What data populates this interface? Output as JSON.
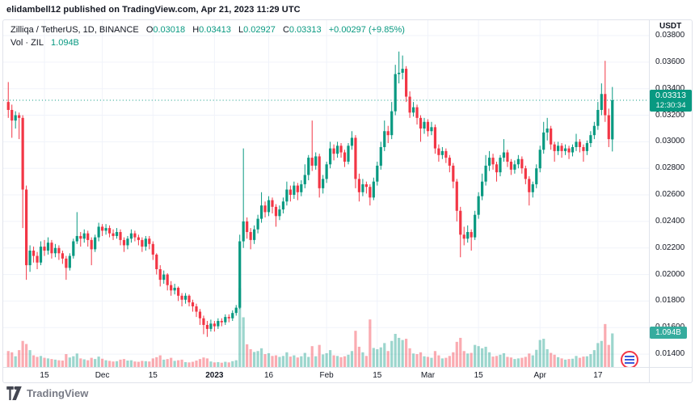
{
  "attribution": "elidambell12 published on TradingView.com, Apr 21, 2023 11:29 UTC",
  "legend": {
    "symbol": "Zilliqa / TetherUS, 1D, BINANCE",
    "o_key": "O",
    "o": "0.03018",
    "h_key": "H",
    "h": "0.03413",
    "l_key": "L",
    "l": "0.02927",
    "c_key": "C",
    "c": "0.03313",
    "change": "+0.00297 (+9.85%)",
    "vol_label": "Vol · ZIL",
    "vol_value": "1.094B"
  },
  "price_scale": {
    "currency": "USDT",
    "last_price": "0.03313",
    "countdown": "12:30:34",
    "volume_badge": "1.094B"
  },
  "footer": {
    "logo_text": "TradingView"
  },
  "colors": {
    "up": "#089981",
    "down": "#f23645",
    "vol_up": "rgba(8,153,129,0.40)",
    "vol_down": "rgba(242,54,69,0.42)",
    "grid": "#f0f3fa",
    "price_line": "#089981"
  },
  "chart_data": {
    "type": "candlestick+volume",
    "title": "Zilliqa / TetherUS daily chart",
    "symbol": "ZIL/USDT",
    "exchange": "BINANCE",
    "interval": "1D",
    "start_date": "2022-11-05",
    "end_date": "2023-04-21",
    "ylim": [
      0.01303,
      0.03916
    ],
    "vol_max_b": 11.3,
    "price_line": 0.03313,
    "last_volume_b": 1.094,
    "y_ticks": [
      "0.03800",
      "0.03600",
      "0.03400",
      "0.03200",
      "0.03000",
      "0.02800",
      "0.02600",
      "0.02400",
      "0.02200",
      "0.02000",
      "0.01800",
      "0.01600",
      "0.01400"
    ],
    "x_ticks": [
      {
        "i": 10,
        "label": "15"
      },
      {
        "i": 26,
        "label": "Dec"
      },
      {
        "i": 40,
        "label": "15"
      },
      {
        "i": 57,
        "label": "2023",
        "bold": true
      },
      {
        "i": 72,
        "label": "16"
      },
      {
        "i": 88,
        "label": "Feb"
      },
      {
        "i": 102,
        "label": "15"
      },
      {
        "i": 116,
        "label": "Mar"
      },
      {
        "i": 130,
        "label": "15"
      },
      {
        "i": 147,
        "label": "Apr"
      },
      {
        "i": 163,
        "label": "17"
      }
    ],
    "candles_format": [
      "open",
      "high",
      "low",
      "close",
      "volume_billions"
    ],
    "candles": [
      [
        0.033,
        0.0345,
        0.0318,
        0.0324,
        0.52
      ],
      [
        0.0324,
        0.0328,
        0.0303,
        0.0316,
        0.48
      ],
      [
        0.0316,
        0.0323,
        0.031,
        0.032,
        0.35
      ],
      [
        0.032,
        0.0322,
        0.0302,
        0.0318,
        0.55
      ],
      [
        0.0318,
        0.032,
        0.0235,
        0.0264,
        0.85
      ],
      [
        0.0264,
        0.0267,
        0.0196,
        0.0207,
        0.75
      ],
      [
        0.0207,
        0.0222,
        0.0202,
        0.0218,
        0.55
      ],
      [
        0.0218,
        0.0221,
        0.0209,
        0.0214,
        0.38
      ],
      [
        0.0214,
        0.0217,
        0.0204,
        0.0209,
        0.33
      ],
      [
        0.0209,
        0.0225,
        0.0207,
        0.0221,
        0.36
      ],
      [
        0.0221,
        0.0226,
        0.0214,
        0.0218,
        0.3
      ],
      [
        0.0218,
        0.0228,
        0.0215,
        0.0224,
        0.28
      ],
      [
        0.0224,
        0.0226,
        0.0212,
        0.0216,
        0.26
      ],
      [
        0.0216,
        0.0223,
        0.0213,
        0.022,
        0.24
      ],
      [
        0.022,
        0.0222,
        0.0211,
        0.0216,
        0.22
      ],
      [
        0.0216,
        0.0218,
        0.0208,
        0.0212,
        0.21
      ],
      [
        0.0212,
        0.0214,
        0.0196,
        0.0205,
        0.42
      ],
      [
        0.0205,
        0.0216,
        0.0203,
        0.0214,
        0.31
      ],
      [
        0.0214,
        0.0227,
        0.0212,
        0.0225,
        0.35
      ],
      [
        0.0225,
        0.0247,
        0.0223,
        0.0229,
        0.44
      ],
      [
        0.0229,
        0.0232,
        0.0221,
        0.0227,
        0.28
      ],
      [
        0.0227,
        0.0234,
        0.0224,
        0.0231,
        0.25
      ],
      [
        0.0231,
        0.0233,
        0.0221,
        0.0226,
        0.22
      ],
      [
        0.0226,
        0.0228,
        0.0207,
        0.0219,
        0.3
      ],
      [
        0.0219,
        0.023,
        0.0217,
        0.0228,
        0.26
      ],
      [
        0.0228,
        0.0239,
        0.0225,
        0.0236,
        0.34
      ],
      [
        0.0236,
        0.0238,
        0.0229,
        0.0233,
        0.27
      ],
      [
        0.0233,
        0.0238,
        0.023,
        0.0235,
        0.22
      ],
      [
        0.0235,
        0.0237,
        0.0228,
        0.0231,
        0.2
      ],
      [
        0.0231,
        0.0234,
        0.0226,
        0.0229,
        0.18
      ],
      [
        0.0229,
        0.0235,
        0.0227,
        0.0232,
        0.19
      ],
      [
        0.0232,
        0.0234,
        0.0222,
        0.0226,
        0.24
      ],
      [
        0.0226,
        0.0228,
        0.0217,
        0.0222,
        0.26
      ],
      [
        0.0222,
        0.0229,
        0.0219,
        0.0227,
        0.21
      ],
      [
        0.0227,
        0.0234,
        0.0224,
        0.0231,
        0.22
      ],
      [
        0.0231,
        0.0233,
        0.0225,
        0.0228,
        0.18
      ],
      [
        0.0228,
        0.023,
        0.0222,
        0.0226,
        0.17
      ],
      [
        0.0226,
        0.0228,
        0.0217,
        0.0221,
        0.2
      ],
      [
        0.0221,
        0.0229,
        0.0218,
        0.0227,
        0.19
      ],
      [
        0.0227,
        0.0229,
        0.0219,
        0.0223,
        0.18
      ],
      [
        0.0223,
        0.0225,
        0.0211,
        0.0215,
        0.28
      ],
      [
        0.0215,
        0.0216,
        0.02,
        0.0204,
        0.32
      ],
      [
        0.0204,
        0.0207,
        0.0191,
        0.0196,
        0.38
      ],
      [
        0.0196,
        0.0203,
        0.0193,
        0.02,
        0.24
      ],
      [
        0.02,
        0.0201,
        0.0188,
        0.0192,
        0.26
      ],
      [
        0.0192,
        0.0195,
        0.0184,
        0.0188,
        0.3
      ],
      [
        0.0188,
        0.0193,
        0.0185,
        0.019,
        0.2
      ],
      [
        0.019,
        0.0191,
        0.018,
        0.0184,
        0.22
      ],
      [
        0.0184,
        0.0186,
        0.0176,
        0.0181,
        0.24
      ],
      [
        0.0181,
        0.0186,
        0.0178,
        0.0184,
        0.16
      ],
      [
        0.0184,
        0.0185,
        0.0176,
        0.0179,
        0.15
      ],
      [
        0.0179,
        0.0181,
        0.0172,
        0.0176,
        0.17
      ],
      [
        0.0176,
        0.0178,
        0.0168,
        0.0172,
        0.21
      ],
      [
        0.0172,
        0.0174,
        0.0162,
        0.0167,
        0.26
      ],
      [
        0.0167,
        0.0169,
        0.0155,
        0.0162,
        0.31
      ],
      [
        0.0162,
        0.0165,
        0.0153,
        0.0159,
        0.28
      ],
      [
        0.0159,
        0.0166,
        0.0157,
        0.0163,
        0.18
      ],
      [
        0.0163,
        0.0165,
        0.0157,
        0.0161,
        0.15
      ],
      [
        0.0161,
        0.0167,
        0.0159,
        0.0165,
        0.16
      ],
      [
        0.0165,
        0.0167,
        0.0161,
        0.0164,
        0.14
      ],
      [
        0.0164,
        0.017,
        0.0162,
        0.0168,
        0.17
      ],
      [
        0.0168,
        0.017,
        0.0164,
        0.0167,
        0.15
      ],
      [
        0.0167,
        0.0173,
        0.0165,
        0.0171,
        0.19
      ],
      [
        0.0171,
        0.0177,
        0.0169,
        0.0175,
        0.22
      ],
      [
        0.0175,
        0.023,
        0.0174,
        0.0225,
        2.57
      ],
      [
        0.0225,
        0.0295,
        0.022,
        0.024,
        1.62
      ],
      [
        0.024,
        0.0243,
        0.0227,
        0.0232,
        0.74
      ],
      [
        0.0232,
        0.0235,
        0.0219,
        0.0226,
        0.58
      ],
      [
        0.0226,
        0.0237,
        0.0223,
        0.0234,
        0.49
      ],
      [
        0.0234,
        0.0245,
        0.0231,
        0.0242,
        0.52
      ],
      [
        0.0242,
        0.0262,
        0.0239,
        0.0252,
        0.61
      ],
      [
        0.0252,
        0.0255,
        0.0243,
        0.0247,
        0.42
      ],
      [
        0.0247,
        0.0259,
        0.0244,
        0.0256,
        0.45
      ],
      [
        0.0256,
        0.0258,
        0.0246,
        0.0251,
        0.36
      ],
      [
        0.0251,
        0.0253,
        0.0236,
        0.0244,
        0.38
      ],
      [
        0.0244,
        0.0252,
        0.0241,
        0.0249,
        0.33
      ],
      [
        0.0249,
        0.0258,
        0.0246,
        0.0255,
        0.36
      ],
      [
        0.0255,
        0.027,
        0.0252,
        0.0264,
        0.48
      ],
      [
        0.0264,
        0.0267,
        0.0255,
        0.026,
        0.34
      ],
      [
        0.026,
        0.027,
        0.0257,
        0.0267,
        0.38
      ],
      [
        0.0267,
        0.0269,
        0.0256,
        0.0262,
        0.31
      ],
      [
        0.0262,
        0.0271,
        0.0259,
        0.0268,
        0.35
      ],
      [
        0.0268,
        0.0283,
        0.0265,
        0.0275,
        0.46
      ],
      [
        0.0275,
        0.029,
        0.0271,
        0.0288,
        0.33
      ],
      [
        0.0288,
        0.0316,
        0.0278,
        0.0282,
        0.68
      ],
      [
        0.0282,
        0.0292,
        0.0279,
        0.0289,
        0.35
      ],
      [
        0.0289,
        0.0291,
        0.0258,
        0.0265,
        0.72
      ],
      [
        0.0265,
        0.0275,
        0.0261,
        0.0272,
        0.41
      ],
      [
        0.0272,
        0.0285,
        0.0269,
        0.0283,
        0.45
      ],
      [
        0.0283,
        0.03,
        0.028,
        0.0295,
        0.55
      ],
      [
        0.0295,
        0.0298,
        0.0286,
        0.0291,
        0.38
      ],
      [
        0.0291,
        0.03,
        0.0288,
        0.0297,
        0.36
      ],
      [
        0.0297,
        0.0299,
        0.0288,
        0.0292,
        0.32
      ],
      [
        0.0292,
        0.0294,
        0.0281,
        0.0285,
        0.35
      ],
      [
        0.0285,
        0.0299,
        0.0283,
        0.0297,
        0.4
      ],
      [
        0.0297,
        0.0308,
        0.0294,
        0.0303,
        0.52
      ],
      [
        0.0303,
        0.0305,
        0.0265,
        0.0272,
        1.18
      ],
      [
        0.0272,
        0.0276,
        0.0255,
        0.0262,
        0.66
      ],
      [
        0.0262,
        0.0272,
        0.0259,
        0.0268,
        0.48
      ],
      [
        0.0268,
        0.027,
        0.0261,
        0.0266,
        0.36
      ],
      [
        0.0266,
        0.0268,
        0.0252,
        0.0258,
        1.55
      ],
      [
        0.0258,
        0.0273,
        0.0256,
        0.027,
        0.62
      ],
      [
        0.027,
        0.0285,
        0.0267,
        0.0282,
        0.58
      ],
      [
        0.0282,
        0.03,
        0.0279,
        0.0296,
        0.64
      ],
      [
        0.0296,
        0.0316,
        0.0293,
        0.0308,
        0.78
      ],
      [
        0.0308,
        0.0312,
        0.0299,
        0.0305,
        0.52
      ],
      [
        0.0305,
        0.033,
        0.0302,
        0.0323,
        0.85
      ],
      [
        0.0323,
        0.0358,
        0.032,
        0.0351,
        1.08
      ],
      [
        0.0351,
        0.0368,
        0.0344,
        0.0352,
        0.95
      ],
      [
        0.0352,
        0.0365,
        0.0347,
        0.0355,
        0.88
      ],
      [
        0.0355,
        0.0357,
        0.033,
        0.0334,
        0.92
      ],
      [
        0.0334,
        0.0338,
        0.0318,
        0.0322,
        0.61
      ],
      [
        0.0322,
        0.033,
        0.0319,
        0.0326,
        0.44
      ],
      [
        0.0326,
        0.0328,
        0.0313,
        0.0318,
        0.42
      ],
      [
        0.0318,
        0.032,
        0.03,
        0.031,
        0.48
      ],
      [
        0.031,
        0.0318,
        0.0306,
        0.0315,
        0.35
      ],
      [
        0.0315,
        0.0317,
        0.0304,
        0.0308,
        0.33
      ],
      [
        0.0308,
        0.0315,
        0.0305,
        0.0311,
        0.3
      ],
      [
        0.0311,
        0.0313,
        0.0291,
        0.0295,
        0.52
      ],
      [
        0.0295,
        0.0298,
        0.0285,
        0.029,
        0.38
      ],
      [
        0.029,
        0.0296,
        0.0287,
        0.0293,
        0.28
      ],
      [
        0.0293,
        0.0295,
        0.0284,
        0.0288,
        0.3
      ],
      [
        0.0288,
        0.029,
        0.0277,
        0.0282,
        0.36
      ],
      [
        0.0282,
        0.0284,
        0.0265,
        0.027,
        0.48
      ],
      [
        0.027,
        0.0272,
        0.024,
        0.0248,
        0.82
      ],
      [
        0.0248,
        0.0251,
        0.0213,
        0.023,
        0.95
      ],
      [
        0.023,
        0.0236,
        0.0222,
        0.0227,
        0.52
      ],
      [
        0.0227,
        0.0237,
        0.0224,
        0.0232,
        0.44
      ],
      [
        0.0232,
        0.0234,
        0.0218,
        0.0228,
        0.46
      ],
      [
        0.0228,
        0.0248,
        0.0226,
        0.0245,
        0.72
      ],
      [
        0.0245,
        0.0262,
        0.0242,
        0.0259,
        0.68
      ],
      [
        0.0259,
        0.0276,
        0.0256,
        0.027,
        0.61
      ],
      [
        0.027,
        0.029,
        0.0267,
        0.0282,
        0.66
      ],
      [
        0.0282,
        0.0293,
        0.0278,
        0.0288,
        0.48
      ],
      [
        0.0288,
        0.0291,
        0.0279,
        0.0283,
        0.34
      ],
      [
        0.0283,
        0.0285,
        0.027,
        0.0277,
        0.36
      ],
      [
        0.0277,
        0.029,
        0.0274,
        0.0288,
        0.4
      ],
      [
        0.0288,
        0.0302,
        0.0285,
        0.0292,
        0.45
      ],
      [
        0.0292,
        0.0294,
        0.0281,
        0.0285,
        0.33
      ],
      [
        0.0285,
        0.0287,
        0.0275,
        0.0279,
        0.31
      ],
      [
        0.0279,
        0.0286,
        0.0276,
        0.0283,
        0.26
      ],
      [
        0.0283,
        0.029,
        0.028,
        0.0287,
        0.28
      ],
      [
        0.0287,
        0.0289,
        0.0276,
        0.028,
        0.3
      ],
      [
        0.028,
        0.0282,
        0.0268,
        0.0272,
        0.33
      ],
      [
        0.0272,
        0.0274,
        0.0252,
        0.0262,
        0.44
      ],
      [
        0.0262,
        0.027,
        0.0258,
        0.0268,
        0.38
      ],
      [
        0.0268,
        0.0283,
        0.0265,
        0.028,
        0.56
      ],
      [
        0.028,
        0.0297,
        0.0277,
        0.0294,
        0.88
      ],
      [
        0.0294,
        0.0315,
        0.0291,
        0.0307,
        0.92
      ],
      [
        0.0307,
        0.0318,
        0.0301,
        0.031,
        0.58
      ],
      [
        0.031,
        0.0312,
        0.0294,
        0.0298,
        0.46
      ],
      [
        0.0298,
        0.03,
        0.0285,
        0.0293,
        0.4
      ],
      [
        0.0293,
        0.03,
        0.029,
        0.0297,
        0.32
      ],
      [
        0.0297,
        0.0299,
        0.0288,
        0.0293,
        0.28
      ],
      [
        0.0293,
        0.0298,
        0.029,
        0.0295,
        0.24
      ],
      [
        0.0295,
        0.0297,
        0.0287,
        0.0292,
        0.26
      ],
      [
        0.0292,
        0.0298,
        0.0289,
        0.0296,
        0.27
      ],
      [
        0.0296,
        0.0306,
        0.0293,
        0.03,
        0.36
      ],
      [
        0.03,
        0.0302,
        0.0292,
        0.0296,
        0.3
      ],
      [
        0.0296,
        0.0298,
        0.0285,
        0.0293,
        0.34
      ],
      [
        0.0293,
        0.0301,
        0.029,
        0.0299,
        0.35
      ],
      [
        0.0299,
        0.0308,
        0.0296,
        0.0305,
        0.42
      ],
      [
        0.0305,
        0.0315,
        0.0302,
        0.0312,
        0.55
      ],
      [
        0.0312,
        0.033,
        0.0309,
        0.0324,
        0.78
      ],
      [
        0.0324,
        0.0344,
        0.032,
        0.0336,
        0.85
      ],
      [
        0.0336,
        0.0361,
        0.0315,
        0.032,
        1.4
      ],
      [
        0.032,
        0.0325,
        0.0296,
        0.0302,
        0.72
      ],
      [
        0.03018,
        0.03413,
        0.02927,
        0.03313,
        1.094
      ]
    ]
  }
}
